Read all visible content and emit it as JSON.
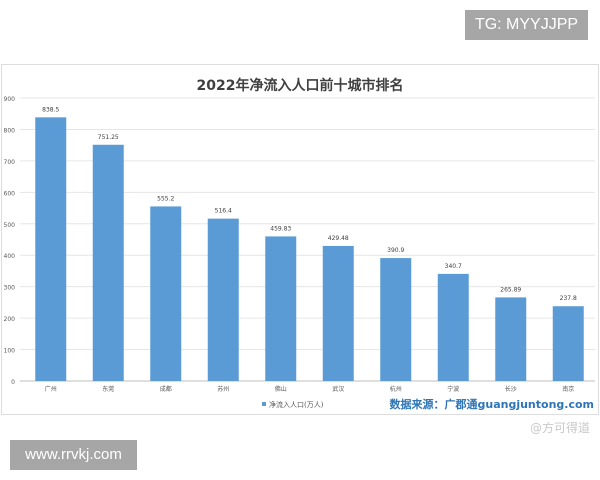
{
  "overlay": {
    "tg_label": "TG: MYYJJPP",
    "site_label": "www.rrvkj.com",
    "watermark": "@方可得道"
  },
  "chart_data": {
    "type": "bar",
    "title": "2022年净流入人口前十城市排名",
    "categories": [
      "广州",
      "东莞",
      "成都",
      "苏州",
      "佛山",
      "武汉",
      "杭州",
      "宁波",
      "长沙",
      "南京"
    ],
    "series": [
      {
        "name": "净流入人口(万人)",
        "values": [
          838.5,
          751.25,
          555.2,
          516.4,
          459.83,
          429.48,
          390.9,
          340.7,
          265.89,
          237.8
        ]
      }
    ],
    "data_labels": [
      "838.5",
      "751.25",
      "555.2",
      "516.4",
      "459.83",
      "429.48",
      "390.9",
      "340.7",
      "265.89",
      "237.8"
    ],
    "ylim": [
      0,
      900
    ],
    "yticks": [
      0,
      100,
      200,
      300,
      400,
      500,
      600,
      700,
      800,
      900
    ],
    "grid": true,
    "legend": "bottom",
    "source": "数据来源：广郡通guangjuntong.com",
    "colors": {
      "bar": "#5b9bd5",
      "source": "#2e75b6"
    }
  }
}
